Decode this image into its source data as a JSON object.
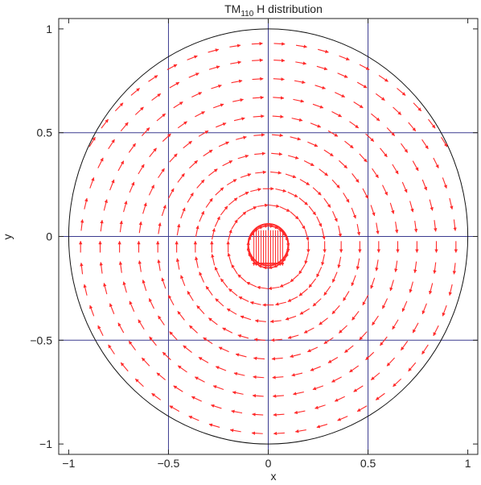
{
  "chart_data": {
    "type": "quiver",
    "title": "TM",
    "title_subscript": "110",
    "title_suffix": " H distribution",
    "xlabel": "x",
    "ylabel": "y",
    "xlim": [
      -1.05,
      1.05
    ],
    "ylim": [
      -1.05,
      1.05
    ],
    "xticks": [
      -1,
      -0.5,
      0,
      0.5,
      1
    ],
    "yticks": [
      -1,
      -0.5,
      0,
      0.5,
      1
    ],
    "xtick_labels": [
      "−1",
      "−0.5",
      "0",
      "0.5",
      "1"
    ],
    "ytick_labels": [
      "−1",
      "−0.5",
      "0",
      "0.5",
      "1"
    ],
    "grid": true,
    "grid_lines": [
      -0.5,
      0,
      0.5
    ],
    "boundary_circle_radius": 1,
    "colors": {
      "arrows": "#ff2a2a",
      "grid": "#3b3b8f",
      "boundary": "#111111",
      "frame": "#222222"
    },
    "field": {
      "description_of_pattern": "magnetic field loops centered near (0, -0.05) with inner dense loop",
      "loop_center": [
        0,
        -0.05
      ],
      "ring_radii": [
        0.1,
        0.2,
        0.28,
        0.36,
        0.45,
        0.54,
        0.63,
        0.72,
        0.81,
        0.9,
        0.98
      ],
      "arrow_counts": [
        24,
        22,
        28,
        30,
        34,
        38,
        42,
        46,
        50,
        54,
        58
      ],
      "rotation": "counterclockwise-right-side-down"
    }
  }
}
